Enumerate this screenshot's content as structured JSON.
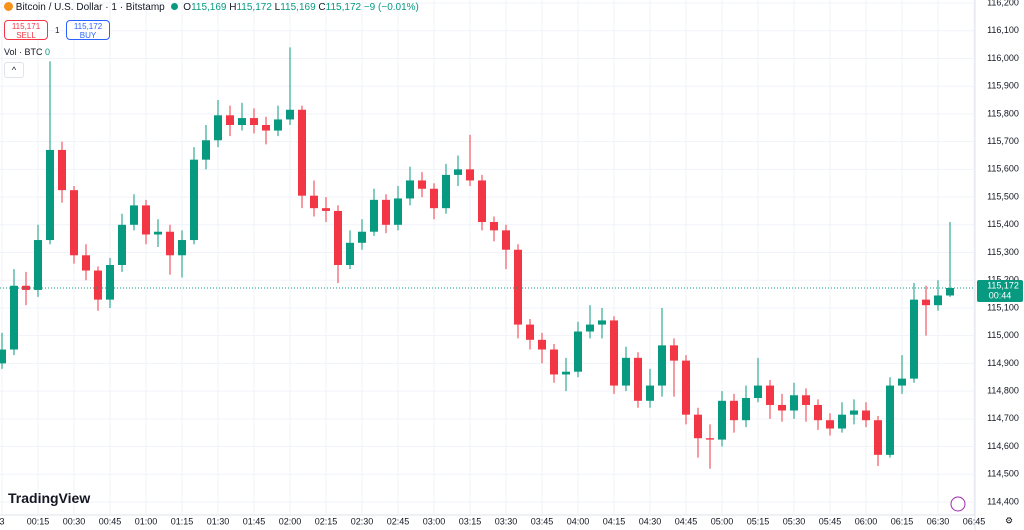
{
  "toolbar": {
    "symbol": "Bitcoin / U.S. Dollar · 1 · Bitstamp",
    "o_label": "O",
    "o": "115,169",
    "h_label": "H",
    "h": "115,172",
    "l_label": "L",
    "l": "115,169",
    "c_label": "C",
    "c": "115,172",
    "change": "−9 (−0.01%)",
    "sell_price": "115,171",
    "sell": "SELL",
    "spread": "1",
    "buy_price": "115,172",
    "buy": "BUY",
    "volume_label": "Vol · BTC",
    "volume_value": "0",
    "logo": "TradingView"
  },
  "chart_data": {
    "type": "candlestick",
    "x": [
      "00:00",
      "00:05",
      "00:10",
      "00:15",
      "00:20",
      "00:25",
      "00:30",
      "00:35",
      "00:40",
      "00:45",
      "00:50",
      "00:55",
      "01:00",
      "01:05",
      "01:10",
      "01:15",
      "01:20",
      "01:25",
      "01:30",
      "01:35",
      "01:40",
      "01:45",
      "01:50",
      "01:55",
      "02:00",
      "02:05",
      "02:10",
      "02:15",
      "02:20",
      "02:25",
      "02:30",
      "02:35",
      "02:40",
      "02:45",
      "02:50",
      "02:55",
      "03:00",
      "03:05",
      "03:10",
      "03:15",
      "03:20",
      "03:25",
      "03:30",
      "03:35",
      "03:40",
      "03:45",
      "03:50",
      "03:55",
      "04:00",
      "04:05",
      "04:10",
      "04:15",
      "04:20",
      "04:25",
      "04:30",
      "04:35",
      "04:40",
      "04:45",
      "04:50",
      "04:55",
      "05:00",
      "05:05",
      "05:10",
      "05:15",
      "05:20",
      "05:25",
      "05:30",
      "05:35",
      "05:40",
      "05:45",
      "05:50",
      "05:55",
      "06:00",
      "06:05",
      "06:10",
      "06:15",
      "06:20",
      "06:25",
      "06:30",
      "06:35"
    ],
    "open": [
      114900,
      114950,
      115180,
      115165,
      115345,
      115670,
      115525,
      115290,
      115235,
      115130,
      115255,
      115400,
      115470,
      115365,
      115375,
      115290,
      115345,
      115635,
      115705,
      115795,
      115760,
      115785,
      115760,
      115740,
      115780,
      115815,
      115505,
      115460,
      115450,
      115255,
      115335,
      115375,
      115490,
      115400,
      115495,
      115560,
      115530,
      115460,
      115580,
      115600,
      115560,
      115410,
      115380,
      115310,
      115040,
      114985,
      114950,
      114860,
      114870,
      115015,
      115040,
      115055,
      114820,
      114920,
      114765,
      114820,
      114965,
      114910,
      114715,
      114630,
      114625,
      114765,
      114695,
      114775,
      114820,
      114750,
      114730,
      114785,
      114750,
      114695,
      114665,
      114715,
      114730,
      114695,
      114570,
      114820,
      114845,
      115130,
      115110,
      115145
    ],
    "high": [
      115010,
      115240,
      115230,
      115400,
      115990,
      115700,
      115540,
      115330,
      115250,
      115280,
      115440,
      115510,
      115490,
      115420,
      115400,
      115380,
      115680,
      115760,
      115850,
      115830,
      115840,
      115820,
      115790,
      115830,
      116040,
      115830,
      115560,
      115500,
      115470,
      115380,
      115420,
      115530,
      115510,
      115540,
      115610,
      115590,
      115550,
      115620,
      115650,
      115725,
      115580,
      115430,
      115400,
      115330,
      115060,
      115010,
      114970,
      114920,
      115050,
      115110,
      115100,
      115070,
      114960,
      114940,
      114880,
      115100,
      114990,
      114930,
      114740,
      114680,
      114800,
      114790,
      114820,
      114920,
      114840,
      114790,
      114830,
      114810,
      114770,
      114720,
      114760,
      114770,
      114760,
      114710,
      114850,
      114930,
      115190,
      115180,
      115200,
      115410
    ],
    "low": [
      114880,
      114930,
      115110,
      115140,
      115330,
      115480,
      115260,
      115200,
      115090,
      115100,
      115230,
      115380,
      115330,
      115320,
      115220,
      115210,
      115330,
      115600,
      115680,
      115720,
      115740,
      115730,
      115690,
      115720,
      115760,
      115460,
      115430,
      115410,
      115190,
      115240,
      115310,
      115360,
      115370,
      115380,
      115470,
      115500,
      115420,
      115440,
      115540,
      115540,
      115380,
      115340,
      115240,
      114990,
      114950,
      114900,
      114830,
      114800,
      114850,
      114990,
      114990,
      114790,
      114800,
      114740,
      114740,
      114780,
      114780,
      114680,
      114560,
      114520,
      114600,
      114650,
      114670,
      114760,
      114700,
      114690,
      114700,
      114690,
      114660,
      114640,
      114650,
      114680,
      114670,
      114530,
      114560,
      114790,
      114830,
      115000,
      115090,
      115140
    ],
    "close": [
      114950,
      115180,
      115165,
      115345,
      115670,
      115525,
      115290,
      115235,
      115130,
      115255,
      115400,
      115470,
      115365,
      115375,
      115290,
      115345,
      115635,
      115705,
      115795,
      115760,
      115785,
      115760,
      115740,
      115780,
      115815,
      115505,
      115460,
      115450,
      115255,
      115335,
      115375,
      115490,
      115400,
      115495,
      115560,
      115530,
      115460,
      115580,
      115600,
      115560,
      115410,
      115380,
      115310,
      115040,
      114985,
      114950,
      114860,
      114870,
      115015,
      115040,
      115055,
      114820,
      114920,
      114765,
      114820,
      114965,
      114910,
      114715,
      114630,
      114625,
      114765,
      114695,
      114775,
      114820,
      114750,
      114730,
      114785,
      114750,
      114695,
      114665,
      114715,
      114730,
      114695,
      114570,
      114820,
      114845,
      115130,
      115110,
      115145,
      115172
    ],
    "up_color": "#089981",
    "down_color": "#f23645",
    "xlim": [
      "00:00",
      "06:45"
    ],
    "xticks": [
      {
        "value": "00:00",
        "label": "3"
      },
      "00:15",
      "00:30",
      "00:45",
      "01:00",
      "01:15",
      "01:30",
      "01:45",
      "02:00",
      "02:15",
      "02:30",
      "02:45",
      "03:00",
      "03:15",
      "03:30",
      "03:45",
      "04:00",
      "04:15",
      "04:30",
      "04:45",
      "05:00",
      "05:15",
      "05:30",
      "05:45",
      "06:00",
      "06:15",
      "06:30",
      "06:45"
    ],
    "ylim": [
      114353,
      116211
    ],
    "yticks": [
      {
        "value": 114400,
        "label": "114,400"
      },
      {
        "value": 114500,
        "label": "114,500"
      },
      {
        "value": 114600,
        "label": "114,600"
      },
      {
        "value": 114700,
        "label": "114,700"
      },
      {
        "value": 114800,
        "label": "114,800"
      },
      {
        "value": 114900,
        "label": "114,900"
      },
      {
        "value": 115000,
        "label": "115,000"
      },
      {
        "value": 115100,
        "label": "115,100"
      },
      {
        "value": 115200,
        "label": "115,200"
      },
      {
        "value": 115300,
        "label": "115,300"
      },
      {
        "value": 115400,
        "label": "115,400"
      },
      {
        "value": 115500,
        "label": "115,500"
      },
      {
        "value": 115600,
        "label": "115,600"
      },
      {
        "value": 115700,
        "label": "115,700"
      },
      {
        "value": 115800,
        "label": "115,800"
      },
      {
        "value": 115900,
        "label": "115,900"
      },
      {
        "value": 116000,
        "label": "116,000"
      },
      {
        "value": 116100,
        "label": "116,100"
      },
      {
        "value": 116200,
        "label": "116,200"
      }
    ],
    "grid": true,
    "last_price": {
      "value": 115172,
      "label": "115,172"
    },
    "countdown": "00:44"
  }
}
